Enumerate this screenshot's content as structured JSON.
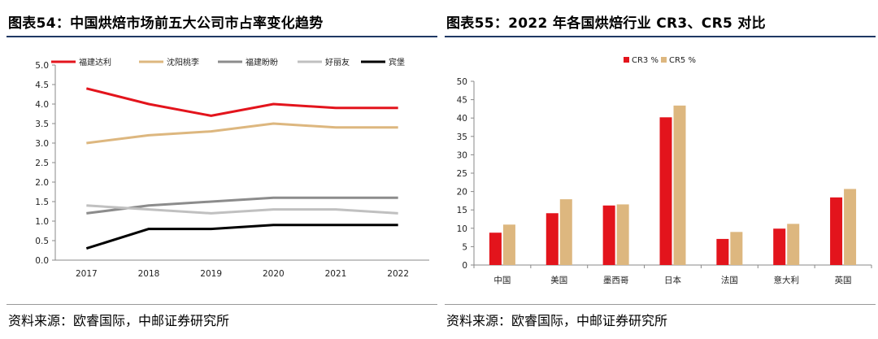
{
  "left": {
    "title": "图表54：中国烘焙市场前五大公司市占率变化趋势",
    "source": "资料来源：欧睿国际，中邮证券研究所"
  },
  "right": {
    "title": "图表55：2022 年各国烘焙行业 CR3、CR5 对比",
    "source": "资料来源：欧睿国际，中邮证券研究所"
  },
  "chart_data": [
    {
      "type": "line",
      "title": "中国烘焙市场前五大公司市占率变化趋势",
      "x": [
        "2017",
        "2018",
        "2019",
        "2020",
        "2021",
        "2022"
      ],
      "ylim": [
        0,
        5
      ],
      "yticks": [
        "0.0",
        "0.5",
        "1.0",
        "1.5",
        "2.0",
        "2.5",
        "3.0",
        "3.5",
        "4.0",
        "4.5",
        "5.0"
      ],
      "legend_position": "top",
      "series": [
        {
          "name": "福建达利",
          "color": "#e3141c",
          "values": [
            4.4,
            4.0,
            3.7,
            4.0,
            3.9,
            3.9
          ]
        },
        {
          "name": "沈阳桃李",
          "color": "#ddb77f",
          "values": [
            3.0,
            3.2,
            3.3,
            3.5,
            3.4,
            3.4
          ]
        },
        {
          "name": "福建盼盼",
          "color": "#8c8c8c",
          "values": [
            1.2,
            1.4,
            1.5,
            1.6,
            1.6,
            1.6
          ]
        },
        {
          "name": "好丽友",
          "color": "#c0c0c0",
          "values": [
            1.4,
            1.3,
            1.2,
            1.3,
            1.3,
            1.2
          ]
        },
        {
          "name": "宾堡",
          "color": "#000000",
          "values": [
            0.3,
            0.8,
            0.8,
            0.9,
            0.9,
            0.9
          ]
        }
      ]
    },
    {
      "type": "bar",
      "title": "2022 年各国烘焙行业 CR3、CR5 对比",
      "categories": [
        "中国",
        "美国",
        "墨西哥",
        "日本",
        "法国",
        "意大利",
        "英国"
      ],
      "ylim": [
        0,
        50
      ],
      "yticks": [
        "0",
        "5",
        "10",
        "15",
        "20",
        "25",
        "30",
        "35",
        "40",
        "45",
        "50"
      ],
      "legend_position": "top",
      "series": [
        {
          "name": "CR3 %",
          "color": "#e3141c",
          "values": [
            8.8,
            14.1,
            16.2,
            40.2,
            7.1,
            9.9,
            18.4
          ]
        },
        {
          "name": "CR5 %",
          "color": "#ddb77f",
          "values": [
            11.0,
            17.9,
            16.5,
            43.4,
            9.0,
            11.2,
            20.7
          ]
        }
      ]
    }
  ]
}
